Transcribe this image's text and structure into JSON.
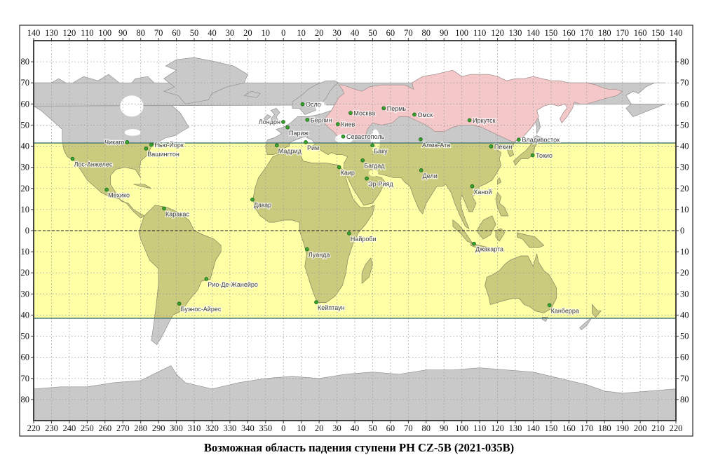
{
  "caption": "Возможная область падения ступени РН CZ-5B (2021-035B)",
  "axes": {
    "top": [
      "140",
      "130",
      "120",
      "110",
      "100",
      "90",
      "80",
      "70",
      "60",
      "50",
      "40",
      "30",
      "20",
      "10",
      "0",
      "10",
      "20",
      "30",
      "40",
      "50",
      "60",
      "70",
      "80",
      "90",
      "100",
      "110",
      "120",
      "130",
      "140",
      "150",
      "160",
      "170",
      "180",
      "170",
      "160",
      "150",
      "140"
    ],
    "bottom": [
      "220",
      "230",
      "240",
      "250",
      "260",
      "270",
      "280",
      "290",
      "300",
      "310",
      "320",
      "330",
      "340",
      "350",
      "0",
      "10",
      "20",
      "30",
      "40",
      "50",
      "60",
      "70",
      "80",
      "90",
      "100",
      "110",
      "120",
      "130",
      "140",
      "150",
      "160",
      "170",
      "180",
      "190",
      "200",
      "210",
      "220"
    ],
    "left": [
      "80",
      "70",
      "60",
      "50",
      "40",
      "30",
      "20",
      "10",
      "0",
      "10",
      "20",
      "30",
      "40",
      "50",
      "60",
      "70",
      "80"
    ],
    "right": [
      "80",
      "70",
      "60",
      "50",
      "40",
      "30",
      "20",
      "10",
      "0",
      "10",
      "20",
      "30",
      "40",
      "50",
      "60",
      "70",
      "80"
    ]
  },
  "band": {
    "lat_min": -41.5,
    "lat_max": 41.5
  },
  "colors": {
    "ocean": "#ffffff",
    "land": "#c9c9c9",
    "land_outline": "#8f8f8f",
    "russia": "#f4c8c8",
    "russia_outline": "#a89090",
    "band_ocean": "#ffffa6",
    "band_land": "#cbcb7e",
    "band_land_outline": "#8e8e60",
    "band_border": "#4f7d77",
    "grid": "#9b9b9b",
    "equator": "#1a1a1a",
    "frame": "#3a3a3a",
    "marker_fill": "#3aa32e",
    "marker_ring": "#1d6b1d"
  },
  "cities": [
    {
      "name": "Чикаго",
      "lat": 41.9,
      "lon": -87.6,
      "label_side": "l"
    },
    {
      "name": "Нью-Йорк",
      "lat": 40.7,
      "lon": -74.0,
      "label_side": "r"
    },
    {
      "name": "Вашингтон",
      "lat": 38.9,
      "lon": -77.0,
      "label_side": "br"
    },
    {
      "name": "Лос-Анжелес",
      "lat": 34.0,
      "lon": -118.2,
      "label_side": "br"
    },
    {
      "name": "Мехико",
      "lat": 19.4,
      "lon": -99.1,
      "label_side": "br"
    },
    {
      "name": "Каракас",
      "lat": 10.5,
      "lon": -66.9,
      "label_side": "br"
    },
    {
      "name": "Осло",
      "lat": 59.9,
      "lon": 10.7,
      "label_side": "r"
    },
    {
      "name": "Лондон",
      "lat": 51.5,
      "lon": -0.1,
      "label_side": "l"
    },
    {
      "name": "Париж",
      "lat": 48.9,
      "lon": 2.3,
      "label_side": "br"
    },
    {
      "name": "Берлин",
      "lat": 52.5,
      "lon": 13.4,
      "label_side": "r"
    },
    {
      "name": "Мадрид",
      "lat": 40.4,
      "lon": -3.7,
      "label_side": "br"
    },
    {
      "name": "Рим",
      "lat": 41.9,
      "lon": 12.5,
      "label_side": "br"
    },
    {
      "name": "Киев",
      "lat": 50.45,
      "lon": 30.5,
      "label_side": "r"
    },
    {
      "name": "Севастополь",
      "lat": 44.6,
      "lon": 33.5,
      "label_side": "r"
    },
    {
      "name": "Москва",
      "lat": 55.75,
      "lon": 37.6,
      "label_side": "r"
    },
    {
      "name": "Пермь",
      "lat": 58.0,
      "lon": 56.2,
      "label_side": "r"
    },
    {
      "name": "Омск",
      "lat": 55.0,
      "lon": 73.4,
      "label_side": "r"
    },
    {
      "name": "Иркутск",
      "lat": 52.3,
      "lon": 104.3,
      "label_side": "r"
    },
    {
      "name": "Алма-Ата",
      "lat": 43.25,
      "lon": 76.9,
      "label_side": "br"
    },
    {
      "name": "Баку",
      "lat": 40.4,
      "lon": 49.9,
      "label_side": "br"
    },
    {
      "name": "Багдад",
      "lat": 33.3,
      "lon": 44.4,
      "label_side": "br"
    },
    {
      "name": "Каир",
      "lat": 30.05,
      "lon": 31.2,
      "label_side": "br"
    },
    {
      "name": "Эр-Рияд",
      "lat": 24.7,
      "lon": 46.7,
      "label_side": "br"
    },
    {
      "name": "Дели",
      "lat": 28.6,
      "lon": 77.2,
      "label_side": "br"
    },
    {
      "name": "Ханой",
      "lat": 21.0,
      "lon": 105.8,
      "label_side": "br"
    },
    {
      "name": "Пекин",
      "lat": 39.9,
      "lon": 116.4,
      "label_side": "r"
    },
    {
      "name": "Владивосток",
      "lat": 43.1,
      "lon": 131.9,
      "label_side": "r"
    },
    {
      "name": "Токио",
      "lat": 35.7,
      "lon": 139.7,
      "label_side": "r"
    },
    {
      "name": "Дакар",
      "lat": 14.7,
      "lon": -17.4,
      "label_side": "br"
    },
    {
      "name": "Найроби",
      "lat": -1.3,
      "lon": 36.8,
      "label_side": "br"
    },
    {
      "name": "Луанда",
      "lat": -8.8,
      "lon": 13.2,
      "label_side": "br"
    },
    {
      "name": "Рио-Де-Жанейро",
      "lat": -22.9,
      "lon": -43.2,
      "label_side": "br"
    },
    {
      "name": "Буэнос-Айрес",
      "lat": -34.6,
      "lon": -58.4,
      "label_side": "br"
    },
    {
      "name": "Кейптаун",
      "lat": -33.9,
      "lon": 18.4,
      "label_side": "br"
    },
    {
      "name": "Джакарта",
      "lat": -6.2,
      "lon": 106.8,
      "label_side": "br"
    },
    {
      "name": "Канберра",
      "lat": -35.3,
      "lon": 149.1,
      "label_side": "br"
    }
  ]
}
